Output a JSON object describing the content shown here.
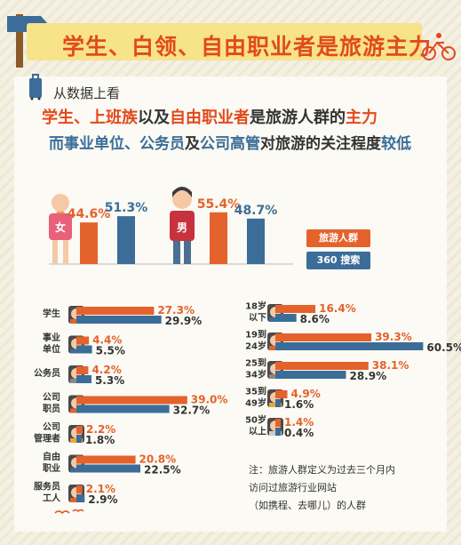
{
  "title": "学生、白领、自由职业者是旅游主力",
  "intro": "从数据上看",
  "headline": {
    "line1": [
      {
        "text": "学生、上班族",
        "hl": true
      },
      {
        "text": "以及",
        "hl": false
      },
      {
        "text": "自由职业者",
        "hl": true
      },
      {
        "text": "是旅游人群的",
        "hl": false
      },
      {
        "text": "主力",
        "hl": true
      }
    ],
    "line2": [
      {
        "text": "而事业单位、公务员",
        "hl": true
      },
      {
        "text": "及",
        "hl": false
      },
      {
        "text": "公司高管",
        "hl": true
      },
      {
        "text": "对旅游的关注程度",
        "hl": false
      },
      {
        "text": "较低",
        "hl": true
      }
    ]
  },
  "legend": {
    "travel": "旅游人群",
    "search": "360 搜索"
  },
  "colors": {
    "travel": "#e4622c",
    "search": "#3b6d98",
    "title": "#e24a1c",
    "banner": "#f7e38a"
  },
  "note": [
    "注：旅游人群定义为过去三个月内",
    "访问过旅游行业网站",
    "（如携程、去哪儿）的人群"
  ],
  "chart_data": [
    {
      "type": "bar",
      "categories": [
        "女",
        "男"
      ],
      "series": [
        {
          "name": "旅游人群",
          "values": [
            44.6,
            55.4
          ]
        },
        {
          "name": "360 搜索",
          "values": [
            51.3,
            48.7
          ]
        }
      ]
    },
    {
      "type": "bar",
      "orientation": "horizontal",
      "categories": [
        "学生",
        "事业单位",
        "公务员",
        "公司职员",
        "公司管理者",
        "自由职业",
        "服务员工人"
      ],
      "category_lines": [
        [
          "学生"
        ],
        [
          "事业",
          "单位"
        ],
        [
          "公务员"
        ],
        [
          "公司",
          "职员"
        ],
        [
          "公司",
          "管理者"
        ],
        [
          "自由",
          "职业"
        ],
        [
          "服务员",
          "工人"
        ]
      ],
      "series": [
        {
          "name": "旅游人群",
          "values": [
            27.3,
            4.4,
            4.2,
            39.0,
            2.2,
            20.8,
            2.1
          ]
        },
        {
          "name": "360 搜索",
          "values": [
            29.9,
            5.5,
            5.3,
            32.7,
            1.8,
            22.5,
            2.9
          ]
        }
      ]
    },
    {
      "type": "bar",
      "orientation": "horizontal",
      "categories": [
        "18岁以下",
        "19到24岁",
        "25到34岁",
        "35到49岁",
        "50岁以上"
      ],
      "category_lines": [
        [
          "18岁",
          "以下"
        ],
        [
          "19到",
          "24岁"
        ],
        [
          "25到",
          "34岁"
        ],
        [
          "35到",
          "49岁"
        ],
        [
          "50岁",
          "以上"
        ]
      ],
      "series": [
        {
          "name": "旅游人群",
          "values": [
            16.4,
            39.3,
            38.1,
            4.9,
            1.4
          ]
        },
        {
          "name": "360 搜索",
          "values": [
            8.6,
            60.5,
            28.9,
            1.6,
            0.4
          ]
        }
      ]
    }
  ]
}
